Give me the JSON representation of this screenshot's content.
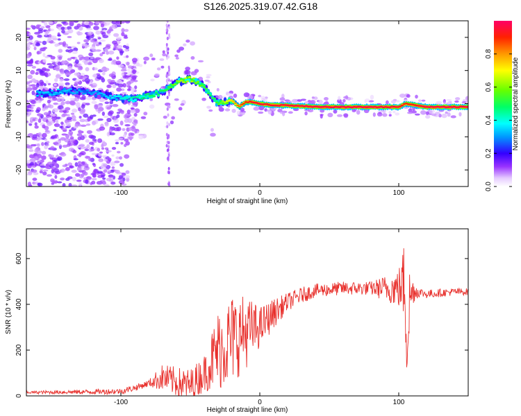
{
  "title": "S126.2025.319.07.42.G18",
  "colors": {
    "snr_line": "#e8302c",
    "frame": "#000000",
    "background": "#ffffff"
  },
  "chart_data": [
    {
      "type": "heatmap",
      "name": "spectrogram",
      "xlabel": "Height of straight line (km)",
      "ylabel": "Frequency (Hz)",
      "xlim": [
        -168,
        150
      ],
      "ylim": [
        -25,
        25
      ],
      "xticks": [
        -100,
        0,
        100
      ],
      "yticks": [
        -20,
        -10,
        0,
        10,
        20
      ],
      "colorbar": {
        "label": "Normalized spectral amplitude",
        "range": [
          0,
          1
        ],
        "ticks": [
          0.0,
          0.2,
          0.4,
          0.6,
          0.8
        ]
      },
      "ridge": {
        "x": [
          -155,
          -140,
          -125,
          -110,
          -100,
          -90,
          -80,
          -70,
          -65,
          -60,
          -55,
          -50,
          -45,
          -40,
          -35,
          -30,
          -25,
          -20,
          -15,
          -10,
          -5,
          0,
          10,
          20,
          40,
          60,
          80,
          100,
          105,
          120,
          150
        ],
        "y": [
          3,
          4,
          3.5,
          2.5,
          1.5,
          1.5,
          2.5,
          3.5,
          5,
          6.5,
          7,
          7.5,
          6.5,
          5,
          2,
          0,
          0.5,
          1,
          -1,
          0.5,
          0.5,
          0,
          -0.5,
          -0.5,
          -1,
          -1,
          -1,
          -1,
          0,
          -1,
          -1
        ],
        "amplitude": [
          0.35,
          0.35,
          0.3,
          0.35,
          0.4,
          0.45,
          0.5,
          0.5,
          0.55,
          0.6,
          0.65,
          0.65,
          0.6,
          0.55,
          0.5,
          0.55,
          0.65,
          0.75,
          0.85,
          0.9,
          0.95,
          0.95,
          0.95,
          0.95,
          0.97,
          0.97,
          0.97,
          0.95,
          0.9,
          0.97,
          0.97
        ]
      }
    },
    {
      "type": "line",
      "name": "snr",
      "xlabel": "Height of straight line (km)",
      "ylabel": "SNR (10 * v/v)",
      "xlim": [
        -168,
        150
      ],
      "ylim": [
        0,
        730
      ],
      "xticks": [
        -100,
        0,
        100
      ],
      "yticks": [
        0,
        200,
        400,
        600
      ],
      "envelope": {
        "x": [
          -168,
          -120,
          -100,
          -90,
          -80,
          -70,
          -60,
          -50,
          -40,
          -30,
          -20,
          -10,
          0,
          10,
          20,
          30,
          40,
          50,
          60,
          70,
          80,
          90,
          100,
          102,
          104,
          106,
          108,
          110,
          120,
          130,
          140,
          150
        ],
        "y": [
          15,
          18,
          20,
          35,
          55,
          80,
          60,
          45,
          100,
          200,
          250,
          280,
          300,
          360,
          410,
          440,
          460,
          465,
          470,
          470,
          470,
          470,
          470,
          480,
          500,
          300,
          420,
          460,
          445,
          450,
          455,
          455
        ]
      },
      "noise": {
        "x": [
          -168,
          -80,
          -70,
          -40,
          -30,
          -20,
          -10,
          0,
          20,
          40,
          80,
          95,
          100,
          103,
          106,
          108,
          110,
          115,
          150
        ],
        "amp": [
          6,
          15,
          60,
          80,
          180,
          200,
          160,
          90,
          40,
          30,
          30,
          70,
          90,
          150,
          300,
          150,
          60,
          20,
          15
        ]
      }
    }
  ]
}
